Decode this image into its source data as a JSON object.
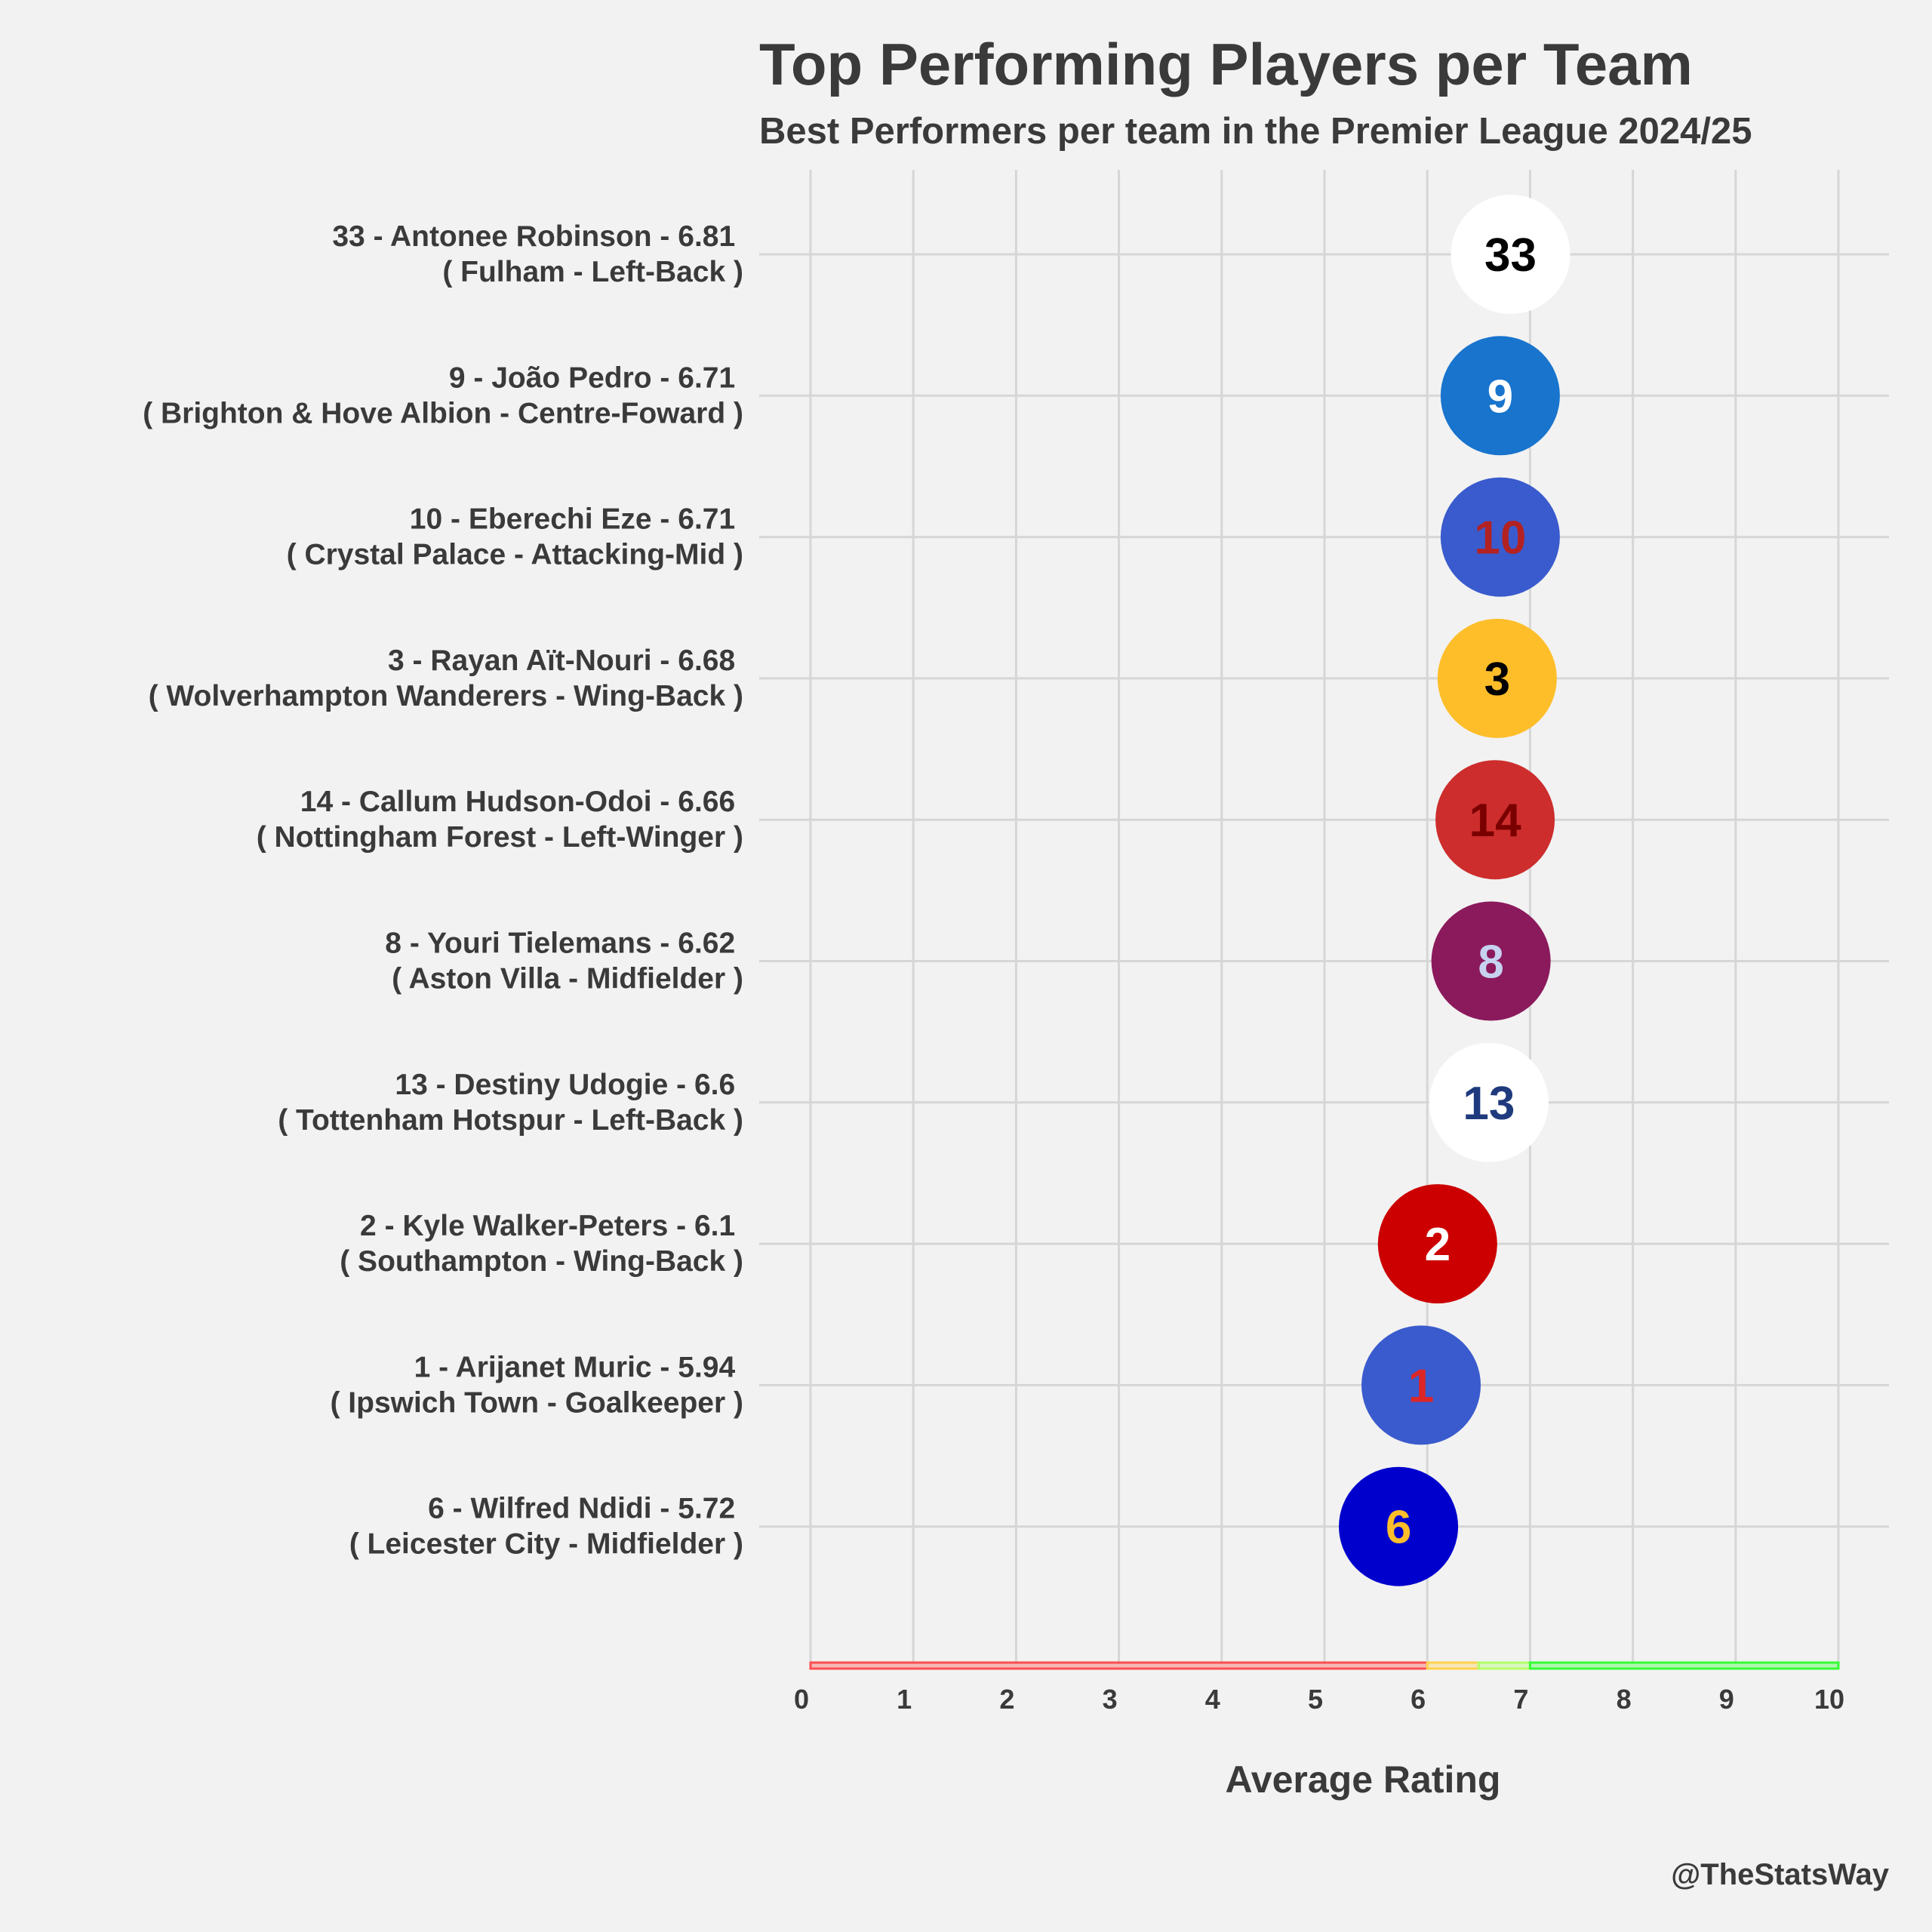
{
  "chart_data": {
    "type": "scatter",
    "title": "Top Performing Players per Team",
    "subtitle": "Best Performers per team in the Premier League 2024/25",
    "xlabel": "Average Rating",
    "ylabel": "",
    "xlim": [
      0,
      10
    ],
    "x_ticks": [
      "0",
      "1",
      "2",
      "3",
      "4",
      "5",
      "6",
      "7",
      "8",
      "9",
      "10"
    ],
    "grid": true,
    "credit": "@TheStatsWay",
    "rating_bands": [
      {
        "from": 0,
        "to": 6,
        "color": "#ff4d4d"
      },
      {
        "from": 6,
        "to": 6.5,
        "color": "#ffd24d"
      },
      {
        "from": 6.5,
        "to": 7,
        "color": "#b3ff66"
      },
      {
        "from": 7,
        "to": 10,
        "color": "#33ff33"
      }
    ],
    "players": [
      {
        "label_line1": "33 - Antonee Robinson - 6.81 ",
        "label_line2": "( Fulham - Left-Back )",
        "number": "33",
        "rating": 6.81,
        "fill": "#ffffff",
        "text_color": "#000000"
      },
      {
        "label_line1": "9 - João Pedro - 6.71 ",
        "label_line2": "( Brighton & Hove Albion - Centre-Foward )",
        "number": "9",
        "rating": 6.71,
        "fill": "#1874cd",
        "text_color": "#ffffff"
      },
      {
        "label_line1": "10 - Eberechi Eze - 6.71 ",
        "label_line2": "( Crystal Palace - Attacking-Mid )",
        "number": "10",
        "rating": 6.71,
        "fill": "#3a5bcd",
        "text_color": "#b22222"
      },
      {
        "label_line1": "3 - Rayan Aït-Nouri - 6.68 ",
        "label_line2": "( Wolverhampton Wanderers - Wing-Back )",
        "number": "3",
        "rating": 6.68,
        "fill": "#fdbe2a",
        "text_color": "#000000"
      },
      {
        "label_line1": "14 - Callum Hudson-Odoi - 6.66 ",
        "label_line2": "( Nottingham Forest - Left-Winger )",
        "number": "14",
        "rating": 6.66,
        "fill": "#cd2d2d",
        "text_color": "#7a0000"
      },
      {
        "label_line1": "8 - Youri Tielemans - 6.62 ",
        "label_line2": "( Aston Villa - Midfielder )",
        "number": "8",
        "rating": 6.62,
        "fill": "#8b1a5c",
        "text_color": "#c6d2f0"
      },
      {
        "label_line1": "13 - Destiny Udogie - 6.6 ",
        "label_line2": "( Tottenham Hotspur - Left-Back )",
        "number": "13",
        "rating": 6.6,
        "fill": "#ffffff",
        "text_color": "#1f3a7d"
      },
      {
        "label_line1": "2 - Kyle Walker-Peters - 6.1 ",
        "label_line2": "( Southampton - Wing-Back )",
        "number": "2",
        "rating": 6.1,
        "fill": "#cc0000",
        "text_color": "#ffffff"
      },
      {
        "label_line1": "1 - Arijanet Muric - 5.94 ",
        "label_line2": "( Ipswich Town - Goalkeeper )",
        "number": "1",
        "rating": 5.94,
        "fill": "#3a5bcd",
        "text_color": "#dc2626"
      },
      {
        "label_line1": "6 - Wilfred Ndidi - 5.72 ",
        "label_line2": "( Leicester City - Midfielder )",
        "number": "6",
        "rating": 5.72,
        "fill": "#0000cd",
        "text_color": "#fdbe2a"
      }
    ]
  }
}
